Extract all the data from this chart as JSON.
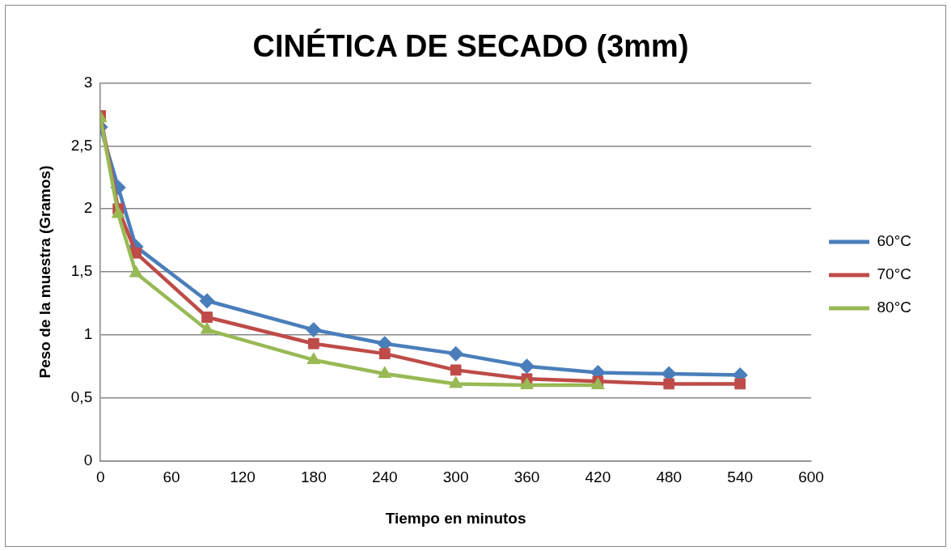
{
  "chart_data": {
    "type": "line",
    "title": "CINÉTICA DE SECADO (3mm)",
    "xlabel": "Tiempo en minutos",
    "ylabel": "Peso de la muestra (Gramos)",
    "x": [
      0,
      15,
      30,
      90,
      180,
      240,
      300,
      360,
      420,
      480,
      540
    ],
    "series": [
      {
        "name": "60°C",
        "color": "#4a7ebb",
        "marker": "diamond",
        "values": [
          2.65,
          2.17,
          1.7,
          1.27,
          1.04,
          0.93,
          0.85,
          0.75,
          0.7,
          0.69,
          0.68
        ]
      },
      {
        "name": "70°C",
        "color": "#be4b48",
        "marker": "square",
        "values": [
          2.74,
          2.0,
          1.65,
          1.14,
          0.93,
          0.85,
          0.72,
          0.65,
          0.63,
          0.61,
          0.61
        ]
      },
      {
        "name": "80°C",
        "color": "#98b954",
        "marker": "triangle",
        "values": [
          2.72,
          1.96,
          1.49,
          1.04,
          0.8,
          0.69,
          0.61,
          0.6,
          0.6,
          null,
          null
        ]
      }
    ],
    "xlim": [
      0,
      600
    ],
    "xticks": [
      0,
      60,
      120,
      180,
      240,
      300,
      360,
      420,
      480,
      540,
      600
    ],
    "ylim": [
      0,
      3
    ],
    "yticks": [
      {
        "value": 0,
        "label": "0"
      },
      {
        "value": 0.5,
        "label": "0,5"
      },
      {
        "value": 1,
        "label": "1"
      },
      {
        "value": 1.5,
        "label": "1,5"
      },
      {
        "value": 2,
        "label": "2"
      },
      {
        "value": 2.5,
        "label": "2,5"
      },
      {
        "value": 3,
        "label": "3"
      }
    ],
    "grid": "y",
    "legend": "right",
    "line_style": "solid"
  }
}
